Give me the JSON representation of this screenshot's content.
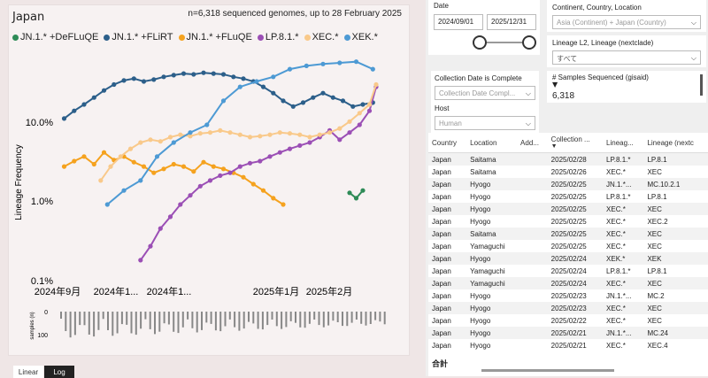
{
  "chart": {
    "title": "Japan",
    "subtitle": "n=6,318 sequenced genomes, up to 28 February 2025",
    "y_axis_label": "Lineage Frequency",
    "y_ticks": [
      "10.0%",
      "1.0%",
      "0.1%"
    ],
    "x_ticks": [
      "2024年9月",
      "2024年1...",
      "2024年1...",
      "2025年1月",
      "2025年2月"
    ],
    "samples_label": "samples (n)",
    "samples_ticks": [
      "0",
      "100"
    ]
  },
  "chart_data": {
    "type": "line",
    "title": "Japan",
    "ylabel": "Lineage Frequency",
    "yscale": "log",
    "ylim": [
      0.001,
      1
    ],
    "legend_position": "top",
    "series": [
      {
        "name": "JN.1.* +DeFLuQE",
        "color": "#2e8b57",
        "points": [
          [
            0.88,
            0.014
          ],
          [
            0.9,
            0.012
          ],
          [
            0.92,
            0.015
          ]
        ]
      },
      {
        "name": "JN.1.* +FLiRT",
        "color": "#2c5f8a",
        "points": [
          [
            0.02,
            0.12
          ],
          [
            0.05,
            0.15
          ],
          [
            0.08,
            0.18
          ],
          [
            0.11,
            0.22
          ],
          [
            0.14,
            0.27
          ],
          [
            0.17,
            0.32
          ],
          [
            0.2,
            0.36
          ],
          [
            0.23,
            0.38
          ],
          [
            0.26,
            0.35
          ],
          [
            0.29,
            0.37
          ],
          [
            0.32,
            0.4
          ],
          [
            0.35,
            0.42
          ],
          [
            0.38,
            0.44
          ],
          [
            0.41,
            0.43
          ],
          [
            0.44,
            0.45
          ],
          [
            0.47,
            0.44
          ],
          [
            0.5,
            0.43
          ],
          [
            0.53,
            0.4
          ],
          [
            0.56,
            0.38
          ],
          [
            0.59,
            0.35
          ],
          [
            0.62,
            0.3
          ],
          [
            0.65,
            0.25
          ],
          [
            0.68,
            0.2
          ],
          [
            0.71,
            0.17
          ],
          [
            0.74,
            0.19
          ],
          [
            0.77,
            0.22
          ],
          [
            0.8,
            0.25
          ],
          [
            0.83,
            0.22
          ],
          [
            0.86,
            0.2
          ],
          [
            0.89,
            0.17
          ],
          [
            0.92,
            0.18
          ],
          [
            0.95,
            0.19
          ]
        ]
      },
      {
        "name": "JN.1.* +FLuQE",
        "color": "#f5a21e",
        "points": [
          [
            0.02,
            0.03
          ],
          [
            0.05,
            0.035
          ],
          [
            0.08,
            0.04
          ],
          [
            0.11,
            0.032
          ],
          [
            0.14,
            0.045
          ],
          [
            0.17,
            0.036
          ],
          [
            0.2,
            0.04
          ],
          [
            0.23,
            0.034
          ],
          [
            0.26,
            0.03
          ],
          [
            0.29,
            0.025
          ],
          [
            0.32,
            0.028
          ],
          [
            0.35,
            0.032
          ],
          [
            0.38,
            0.03
          ],
          [
            0.41,
            0.026
          ],
          [
            0.44,
            0.034
          ],
          [
            0.47,
            0.03
          ],
          [
            0.5,
            0.028
          ],
          [
            0.53,
            0.025
          ],
          [
            0.56,
            0.022
          ],
          [
            0.59,
            0.018
          ],
          [
            0.62,
            0.015
          ],
          [
            0.65,
            0.012
          ],
          [
            0.68,
            0.01
          ]
        ]
      },
      {
        "name": "LP.8.1.*",
        "color": "#9b4fb5",
        "points": [
          [
            0.25,
            0.002
          ],
          [
            0.28,
            0.003
          ],
          [
            0.31,
            0.005
          ],
          [
            0.34,
            0.007
          ],
          [
            0.37,
            0.01
          ],
          [
            0.4,
            0.013
          ],
          [
            0.43,
            0.017
          ],
          [
            0.46,
            0.02
          ],
          [
            0.49,
            0.023
          ],
          [
            0.52,
            0.025
          ],
          [
            0.55,
            0.03
          ],
          [
            0.58,
            0.033
          ],
          [
            0.61,
            0.035
          ],
          [
            0.64,
            0.04
          ],
          [
            0.67,
            0.045
          ],
          [
            0.7,
            0.05
          ],
          [
            0.73,
            0.055
          ],
          [
            0.76,
            0.06
          ],
          [
            0.79,
            0.07
          ],
          [
            0.82,
            0.085
          ],
          [
            0.85,
            0.065
          ],
          [
            0.88,
            0.08
          ],
          [
            0.91,
            0.1
          ],
          [
            0.94,
            0.15
          ],
          [
            0.96,
            0.3
          ]
        ]
      },
      {
        "name": "XEC.*",
        "color": "#f9c98a",
        "points": [
          [
            0.13,
            0.02
          ],
          [
            0.16,
            0.03
          ],
          [
            0.19,
            0.04
          ],
          [
            0.22,
            0.05
          ],
          [
            0.25,
            0.06
          ],
          [
            0.28,
            0.065
          ],
          [
            0.31,
            0.062
          ],
          [
            0.34,
            0.07
          ],
          [
            0.37,
            0.075
          ],
          [
            0.4,
            0.072
          ],
          [
            0.43,
            0.078
          ],
          [
            0.46,
            0.08
          ],
          [
            0.49,
            0.085
          ],
          [
            0.52,
            0.08
          ],
          [
            0.55,
            0.075
          ],
          [
            0.58,
            0.07
          ],
          [
            0.61,
            0.072
          ],
          [
            0.64,
            0.075
          ],
          [
            0.67,
            0.08
          ],
          [
            0.7,
            0.078
          ],
          [
            0.73,
            0.075
          ],
          [
            0.76,
            0.07
          ],
          [
            0.79,
            0.075
          ],
          [
            0.82,
            0.08
          ],
          [
            0.85,
            0.09
          ],
          [
            0.88,
            0.11
          ],
          [
            0.91,
            0.14
          ],
          [
            0.94,
            0.18
          ],
          [
            0.96,
            0.32
          ]
        ]
      },
      {
        "name": "XEK.*",
        "color": "#4d9ad4",
        "points": [
          [
            0.15,
            0.01
          ],
          [
            0.2,
            0.015
          ],
          [
            0.25,
            0.02
          ],
          [
            0.3,
            0.04
          ],
          [
            0.35,
            0.06
          ],
          [
            0.4,
            0.08
          ],
          [
            0.45,
            0.1
          ],
          [
            0.5,
            0.2
          ],
          [
            0.55,
            0.3
          ],
          [
            0.6,
            0.35
          ],
          [
            0.65,
            0.4
          ],
          [
            0.7,
            0.5
          ],
          [
            0.75,
            0.55
          ],
          [
            0.8,
            0.58
          ],
          [
            0.85,
            0.6
          ],
          [
            0.9,
            0.62
          ],
          [
            0.95,
            0.5
          ]
        ]
      }
    ]
  },
  "scale_toggle": {
    "linear": "Linear",
    "log": "Log"
  },
  "date_slicer": {
    "title": "Date",
    "start": "2024/09/01",
    "end": "2025/12/31"
  },
  "location_slicer": {
    "title": "Continent, Country, Location",
    "value": "Asia (Continent) + Japan (Country)"
  },
  "lineage_slicer": {
    "title": "Lineage L2, Lineage (nextclade)",
    "value": "すべて"
  },
  "collection_complete_slicer": {
    "title": "Collection Date is Complete",
    "value": "Collection Date Compl..."
  },
  "host_slicer": {
    "title": "Host",
    "value": "Human"
  },
  "samples_card": {
    "title": "# Samples Sequenced (gisaid)",
    "value": "6,318"
  },
  "table": {
    "headers": [
      "Country",
      "Location",
      "Add...",
      "Collection ...",
      "Lineag...",
      "Lineage (nextc"
    ],
    "rows": [
      [
        "Japan",
        "Saitama",
        "",
        "2025/02/28",
        "LP.8.1.*",
        "LP.8.1"
      ],
      [
        "Japan",
        "Saitama",
        "",
        "2025/02/26",
        "XEC.*",
        "XEC"
      ],
      [
        "Japan",
        "Hyogo",
        "",
        "2025/02/25",
        "JN.1.*...",
        "MC.10.2.1"
      ],
      [
        "Japan",
        "Hyogo",
        "",
        "2025/02/25",
        "LP.8.1.*",
        "LP.8.1"
      ],
      [
        "Japan",
        "Hyogo",
        "",
        "2025/02/25",
        "XEC.*",
        "XEC"
      ],
      [
        "Japan",
        "Hyogo",
        "",
        "2025/02/25",
        "XEC.*",
        "XEC.2"
      ],
      [
        "Japan",
        "Saitama",
        "",
        "2025/02/25",
        "XEC.*",
        "XEC"
      ],
      [
        "Japan",
        "Yamaguchi",
        "",
        "2025/02/25",
        "XEC.*",
        "XEC"
      ],
      [
        "Japan",
        "Hyogo",
        "",
        "2025/02/24",
        "XEK.*",
        "XEK"
      ],
      [
        "Japan",
        "Yamaguchi",
        "",
        "2025/02/24",
        "LP.8.1.*",
        "LP.8.1"
      ],
      [
        "Japan",
        "Yamaguchi",
        "",
        "2025/02/24",
        "XEC.*",
        "XEC"
      ],
      [
        "Japan",
        "Hyogo",
        "",
        "2025/02/23",
        "JN.1.*...",
        "MC.2"
      ],
      [
        "Japan",
        "Hyogo",
        "",
        "2025/02/23",
        "XEC.*",
        "XEC"
      ],
      [
        "Japan",
        "Hyogo",
        "",
        "2025/02/22",
        "XEC.*",
        "XEC"
      ],
      [
        "Japan",
        "Hyogo",
        "",
        "2025/02/21",
        "JN.1.*...",
        "MC.24"
      ],
      [
        "Japan",
        "Hyogo",
        "",
        "2025/02/21",
        "XEC.*",
        "XEC.4"
      ]
    ],
    "footer": "合計"
  }
}
